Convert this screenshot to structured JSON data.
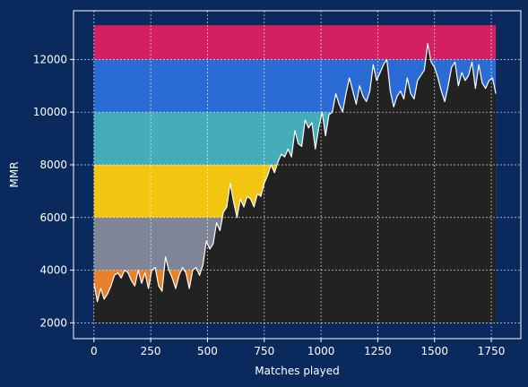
{
  "chart_data": {
    "type": "area",
    "title": "",
    "xlabel": "Matches played",
    "ylabel": "MMR",
    "xlim": [
      -90,
      1880
    ],
    "ylim": [
      1400,
      13850
    ],
    "xticks": [
      0,
      250,
      500,
      750,
      1000,
      1250,
      1500,
      1750
    ],
    "yticks": [
      2000,
      4000,
      6000,
      8000,
      10000,
      12000
    ],
    "grid": true,
    "colors": {
      "background": "#0a2a5e",
      "area_fill": "#222222",
      "line": "#ffffff",
      "grid": "#ffffff",
      "axes": "#ffffff"
    },
    "bands": [
      {
        "from": 2000,
        "to": 4000,
        "color": "#e8822a"
      },
      {
        "from": 4000,
        "to": 6000,
        "color": "#7f8497"
      },
      {
        "from": 6000,
        "to": 8000,
        "color": "#f2c511"
      },
      {
        "from": 8000,
        "to": 10000,
        "color": "#45adb9"
      },
      {
        "from": 10000,
        "to": 12000,
        "color": "#2b6bd6"
      },
      {
        "from": 12000,
        "to": 13300,
        "color": "#d41f63"
      }
    ],
    "series": [
      {
        "x": [
          0,
          15,
          30,
          45,
          60,
          75,
          90,
          105,
          120,
          135,
          150,
          165,
          180,
          195,
          210,
          225,
          240,
          255,
          270,
          285,
          300,
          315,
          330,
          345,
          360,
          375,
          390,
          405,
          420,
          435,
          450,
          465,
          480,
          495,
          510,
          525,
          540,
          555,
          570,
          585,
          600,
          615,
          630,
          645,
          660,
          675,
          690,
          705,
          720,
          735,
          750,
          765,
          780,
          795,
          810,
          825,
          840,
          855,
          870,
          885,
          900,
          915,
          930,
          945,
          960,
          975,
          990,
          1005,
          1020,
          1035,
          1050,
          1065,
          1080,
          1095,
          1110,
          1125,
          1140,
          1155,
          1170,
          1185,
          1200,
          1215,
          1230,
          1245,
          1260,
          1275,
          1290,
          1305,
          1320,
          1335,
          1350,
          1365,
          1380,
          1395,
          1410,
          1425,
          1440,
          1455,
          1470,
          1485,
          1500,
          1515,
          1530,
          1545,
          1560,
          1575,
          1590,
          1605,
          1620,
          1635,
          1650,
          1665,
          1680,
          1695,
          1710,
          1725,
          1740,
          1755,
          1770
        ],
        "values": [
          3500,
          2800,
          3300,
          2900,
          3100,
          3400,
          3800,
          3900,
          3700,
          4000,
          3900,
          3600,
          3400,
          4000,
          3500,
          3900,
          3300,
          4000,
          4100,
          3400,
          3200,
          4500,
          4000,
          3700,
          3300,
          3800,
          4100,
          3900,
          3300,
          4000,
          4100,
          3800,
          4200,
          5100,
          4800,
          5000,
          5800,
          5500,
          6200,
          6400,
          7300,
          6600,
          6000,
          6700,
          6400,
          6800,
          6700,
          6400,
          6900,
          6800,
          7300,
          7600,
          8000,
          7700,
          8100,
          8400,
          8300,
          8600,
          8300,
          9300,
          8800,
          8700,
          9700,
          9400,
          9600,
          8600,
          9400,
          10000,
          9100,
          9900,
          10000,
          10700,
          10300,
          10000,
          10700,
          11300,
          10800,
          10300,
          11000,
          10600,
          10400,
          10800,
          11800,
          11200,
          11500,
          11800,
          12000,
          10800,
          10200,
          10600,
          10800,
          10500,
          11300,
          10700,
          10500,
          11200,
          11400,
          11600,
          12600,
          11900,
          11700,
          11300,
          10800,
          10400,
          11000,
          11700,
          11900,
          11000,
          11500,
          11200,
          11400,
          11900,
          10900,
          11800,
          11100,
          10900,
          11200,
          11300,
          10700
        ]
      }
    ]
  }
}
